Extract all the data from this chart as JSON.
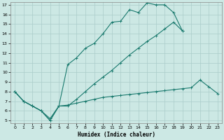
{
  "xlabel": "Humidex (Indice chaleur)",
  "bg_color": "#cce8e4",
  "grid_color": "#aaccca",
  "line_color": "#1a7a6e",
  "xlim": [
    -0.5,
    23.5
  ],
  "ylim": [
    4.7,
    17.3
  ],
  "xticks": [
    0,
    1,
    2,
    3,
    4,
    5,
    6,
    7,
    8,
    9,
    10,
    11,
    12,
    13,
    14,
    15,
    16,
    17,
    18,
    19,
    20,
    21,
    22,
    23
  ],
  "yticks": [
    5,
    6,
    7,
    8,
    9,
    10,
    11,
    12,
    13,
    14,
    15,
    16,
    17
  ],
  "line1_x": [
    0,
    1,
    2,
    3,
    4,
    5,
    6,
    7,
    8,
    9,
    10,
    11,
    12,
    13,
    14,
    15,
    16,
    17,
    18,
    19
  ],
  "line1_y": [
    8,
    7,
    6.5,
    6,
    5,
    6.5,
    10.8,
    11.5,
    12.5,
    13,
    14,
    15.2,
    15.3,
    16.5,
    16.2,
    17.2,
    17,
    17,
    16.2,
    14.3
  ],
  "line2_x": [
    0,
    1,
    2,
    3,
    4,
    5,
    6,
    7,
    8,
    9,
    10,
    11,
    12,
    13,
    14,
    15,
    16,
    17,
    18,
    19
  ],
  "line2_y": [
    8,
    7,
    6.5,
    6,
    5,
    6.5,
    6.5,
    7.2,
    8.0,
    8.8,
    9.5,
    10.2,
    11.0,
    11.8,
    12.5,
    13.2,
    13.8,
    14.5,
    15.2,
    14.3
  ],
  "line3_x": [
    0,
    1,
    2,
    3,
    4,
    5,
    6,
    7,
    8,
    9,
    10,
    11,
    12,
    13,
    14,
    15,
    16,
    17,
    18,
    19,
    20,
    21,
    22,
    23
  ],
  "line3_y": [
    8,
    7,
    6.5,
    6,
    5.2,
    6.5,
    6.6,
    6.8,
    7.0,
    7.2,
    7.4,
    7.5,
    7.6,
    7.7,
    7.8,
    7.9,
    8.0,
    8.1,
    8.2,
    8.3,
    8.4,
    9.2,
    8.5,
    7.8
  ]
}
